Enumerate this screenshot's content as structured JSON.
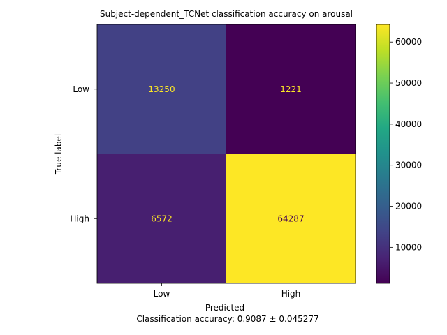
{
  "chart_data": {
    "type": "heatmap",
    "title": "Subject-dependent_TCNet classification accuracy on arousal",
    "xlabel": "Predicted",
    "ylabel": "True label",
    "x_categories": [
      "Low",
      "High"
    ],
    "y_categories": [
      "Low",
      "High"
    ],
    "values": [
      [
        13250,
        1221
      ],
      [
        6572,
        64287
      ]
    ],
    "colormap": "viridis",
    "colorbar_ticks": [
      "10000",
      "20000",
      "30000",
      "40000",
      "50000",
      "60000"
    ],
    "colorbar_tick_values": [
      10000,
      20000,
      30000,
      40000,
      50000,
      60000
    ],
    "colorbar_range": [
      1221,
      64287
    ],
    "cell_text_colors": {
      "on_dark": "#fde725",
      "on_light": "#440154"
    },
    "footer": "Classification accuracy: 0.9087 ± 0.045277"
  }
}
